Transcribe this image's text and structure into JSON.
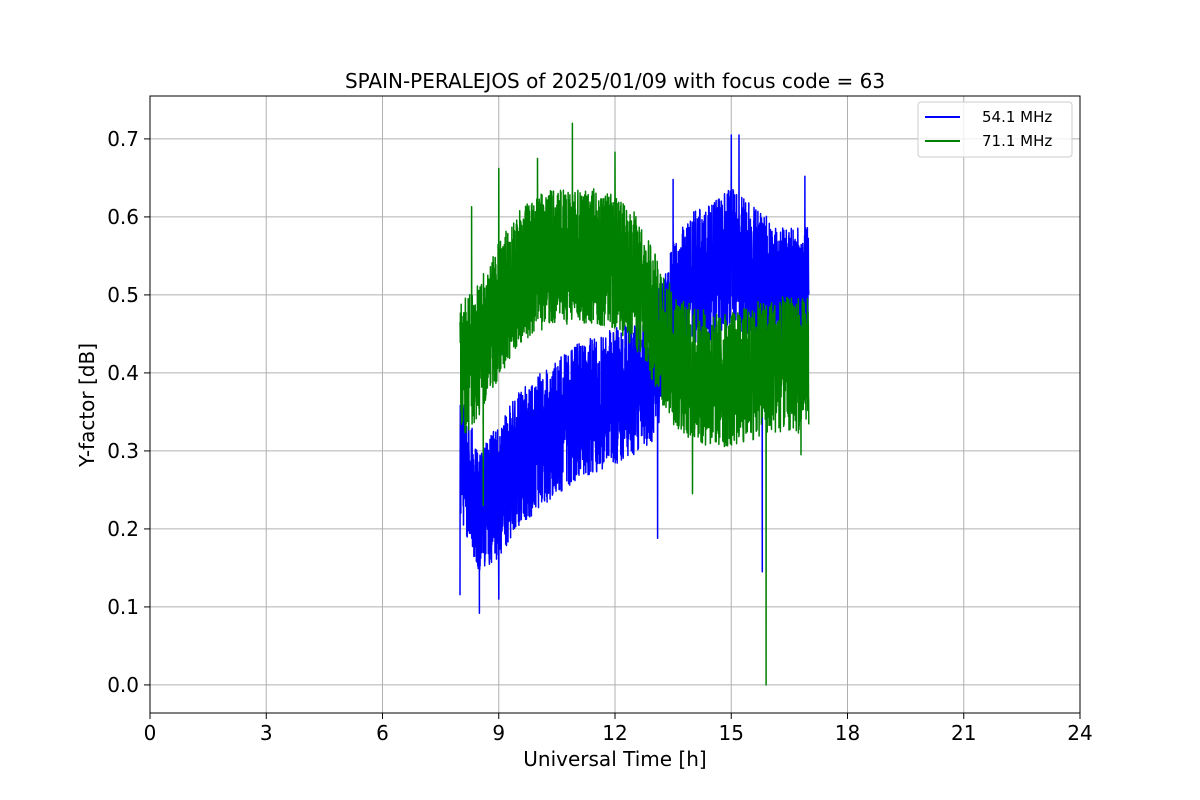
{
  "chart_data": {
    "type": "line",
    "title": "SPAIN-PERALEJOS of 2025/01/09 with focus code = 63",
    "xlabel": "Universal Time [h]",
    "ylabel": "Y-factor [dB]",
    "xlim": [
      0,
      24
    ],
    "ylim": [
      -0.036,
      0.755
    ],
    "xticks": [
      0,
      3,
      6,
      9,
      12,
      15,
      18,
      21,
      24
    ],
    "xtick_labels": [
      "0",
      "3",
      "6",
      "9",
      "12",
      "15",
      "18",
      "21",
      "24"
    ],
    "yticks": [
      0.0,
      0.1,
      0.2,
      0.3,
      0.4,
      0.5,
      0.6,
      0.7
    ],
    "ytick_labels": [
      "0.0",
      "0.1",
      "0.2",
      "0.3",
      "0.4",
      "0.5",
      "0.6",
      "0.7"
    ],
    "grid": true,
    "legend_position": "top-right",
    "series": [
      {
        "name": "54.1 MHz",
        "color": "#0000ff",
        "time_range": [
          8.0,
          17.0
        ],
        "trend": {
          "x": [
            8.0,
            8.5,
            9.0,
            9.5,
            10.0,
            10.5,
            11.0,
            11.5,
            12.0,
            12.5,
            13.0,
            13.5,
            14.0,
            14.5,
            15.0,
            15.5,
            16.0,
            16.5,
            17.0
          ],
          "mean": [
            0.3,
            0.22,
            0.25,
            0.29,
            0.31,
            0.33,
            0.35,
            0.36,
            0.37,
            0.38,
            0.4,
            0.48,
            0.52,
            0.53,
            0.55,
            0.53,
            0.51,
            0.5,
            0.5
          ],
          "spread": [
            0.07,
            0.06,
            0.07,
            0.07,
            0.07,
            0.07,
            0.07,
            0.07,
            0.07,
            0.07,
            0.07,
            0.07,
            0.07,
            0.07,
            0.07,
            0.07,
            0.07,
            0.07,
            0.07
          ]
        },
        "extremes": [
          {
            "x": 8.0,
            "y": 0.115
          },
          {
            "x": 8.5,
            "y": 0.092
          },
          {
            "x": 9.0,
            "y": 0.11
          },
          {
            "x": 13.1,
            "y": 0.188
          },
          {
            "x": 13.5,
            "y": 0.648
          },
          {
            "x": 15.0,
            "y": 0.705
          },
          {
            "x": 15.2,
            "y": 0.705
          },
          {
            "x": 15.8,
            "y": 0.145
          },
          {
            "x": 16.9,
            "y": 0.652
          }
        ]
      },
      {
        "name": "71.1 MHz",
        "color": "#008000",
        "time_range": [
          8.0,
          17.0
        ],
        "trend": {
          "x": [
            8.0,
            8.5,
            9.0,
            9.5,
            10.0,
            10.5,
            11.0,
            11.5,
            12.0,
            12.5,
            13.0,
            13.5,
            14.0,
            14.5,
            15.0,
            15.5,
            16.0,
            16.5,
            17.0
          ],
          "mean": [
            0.4,
            0.43,
            0.48,
            0.52,
            0.54,
            0.55,
            0.55,
            0.55,
            0.54,
            0.52,
            0.47,
            0.42,
            0.4,
            0.39,
            0.39,
            0.4,
            0.41,
            0.41,
            0.41
          ],
          "spread": [
            0.07,
            0.07,
            0.07,
            0.07,
            0.07,
            0.07,
            0.07,
            0.07,
            0.07,
            0.07,
            0.07,
            0.07,
            0.07,
            0.07,
            0.07,
            0.07,
            0.07,
            0.07,
            0.07
          ]
        },
        "extremes": [
          {
            "x": 8.0,
            "y": 0.465
          },
          {
            "x": 8.3,
            "y": 0.613
          },
          {
            "x": 8.6,
            "y": 0.23
          },
          {
            "x": 9.0,
            "y": 0.662
          },
          {
            "x": 10.0,
            "y": 0.675
          },
          {
            "x": 10.9,
            "y": 0.72
          },
          {
            "x": 12.0,
            "y": 0.683
          },
          {
            "x": 14.0,
            "y": 0.245
          },
          {
            "x": 15.9,
            "y": 0.0
          },
          {
            "x": 16.8,
            "y": 0.295
          }
        ]
      }
    ]
  }
}
